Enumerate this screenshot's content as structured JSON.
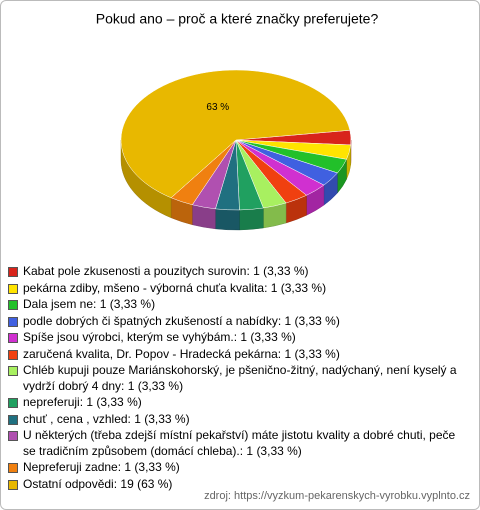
{
  "chart_data": {
    "type": "pie",
    "title": "Pokud ano – proč a které značky preferujete?",
    "categories": [
      "Kabat pole zkusenosti a pouzitych surovin: 1 (3,33 %)",
      "pekárna zdiby, mšeno - výborná chuťa kvalita: 1 (3,33 %)",
      "Dala jsem ne: 1 (3,33 %)",
      "podle dobrých či špatných zkušeností a nabídky: 1 (3,33 %)",
      "Spíše jsou výrobci, kterým se vyhýbám.: 1 (3,33 %)",
      "zaručená kvalita, Dr. Popov - Hradecká pekárna: 1 (3,33 %)",
      "Chléb kupuji pouze Mariánskohorský, je pšenično-žitný, nadýchaný, není kyselý a vydrží dobrý 4 dny: 1 (3,33 %)",
      "nepreferuji: 1 (3,33 %)",
      "chuť , cena , vzhled: 1 (3,33 %)",
      "U některých (třeba zdejší místní pekařství) máte jistotu kvality a dobré chuti, peče se tradičním způsobem (domácí chleba).: 1 (3,33 %)",
      "Nepreferuji zadne: 1 (3,33 %)",
      "Ostatní odpovědi: 19 (63 %)"
    ],
    "values": [
      3.33,
      3.33,
      3.33,
      3.33,
      3.33,
      3.33,
      3.33,
      3.33,
      3.33,
      3.33,
      3.33,
      63
    ],
    "value_labels": [
      null,
      null,
      null,
      null,
      null,
      null,
      null,
      null,
      null,
      null,
      null,
      "63 %"
    ],
    "colors": [
      "#d8241b",
      "#ffe400",
      "#22c02a",
      "#4060e0",
      "#d030d0",
      "#f04010",
      "#a8f060",
      "#20a060",
      "#207080",
      "#b050b0",
      "#f08010",
      "#e8b800"
    ],
    "source": "zdroj: https://vyzkum-pekarenskych-vyrobku.vyplnto.cz"
  }
}
